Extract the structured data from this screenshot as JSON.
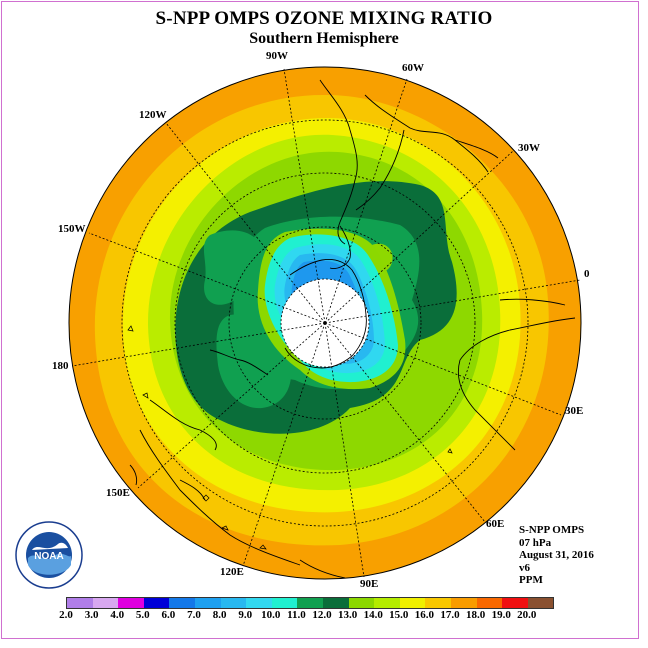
{
  "title": "S-NPP OMPS OZONE MIXING RATIO",
  "subtitle": "Southern Hemisphere",
  "longitude_labels": [
    "90W",
    "60W",
    "120W",
    "30W",
    "150W",
    "0",
    "180",
    "30E",
    "150E",
    "60E",
    "120E",
    "90E"
  ],
  "info": {
    "instrument": "S-NPP OMPS",
    "level": "07 hPa",
    "date": "August 31, 2016",
    "version": "v6",
    "units": "PPM"
  },
  "logo_text": "NOAA",
  "colorbar": {
    "labels": [
      "2.0",
      "3.0",
      "4.0",
      "5.0",
      "6.0",
      "7.0",
      "8.0",
      "9.0",
      "10.0",
      "11.0",
      "12.0",
      "13.0",
      "14.0",
      "15.0",
      "16.0",
      "17.0",
      "18.0",
      "19.0",
      "20.0"
    ],
    "colors": [
      "#b07ee8",
      "#d8a8f0",
      "#e000e0",
      "#0000d8",
      "#1478e8",
      "#1ea0f0",
      "#28b8f0",
      "#32d8f0",
      "#20f0d0",
      "#10a050",
      "#0a6e3a",
      "#8cd800",
      "#b4ec00",
      "#f0f000",
      "#f8c800",
      "#f89c00",
      "#f86800",
      "#f01010",
      "#8a5030"
    ]
  }
}
